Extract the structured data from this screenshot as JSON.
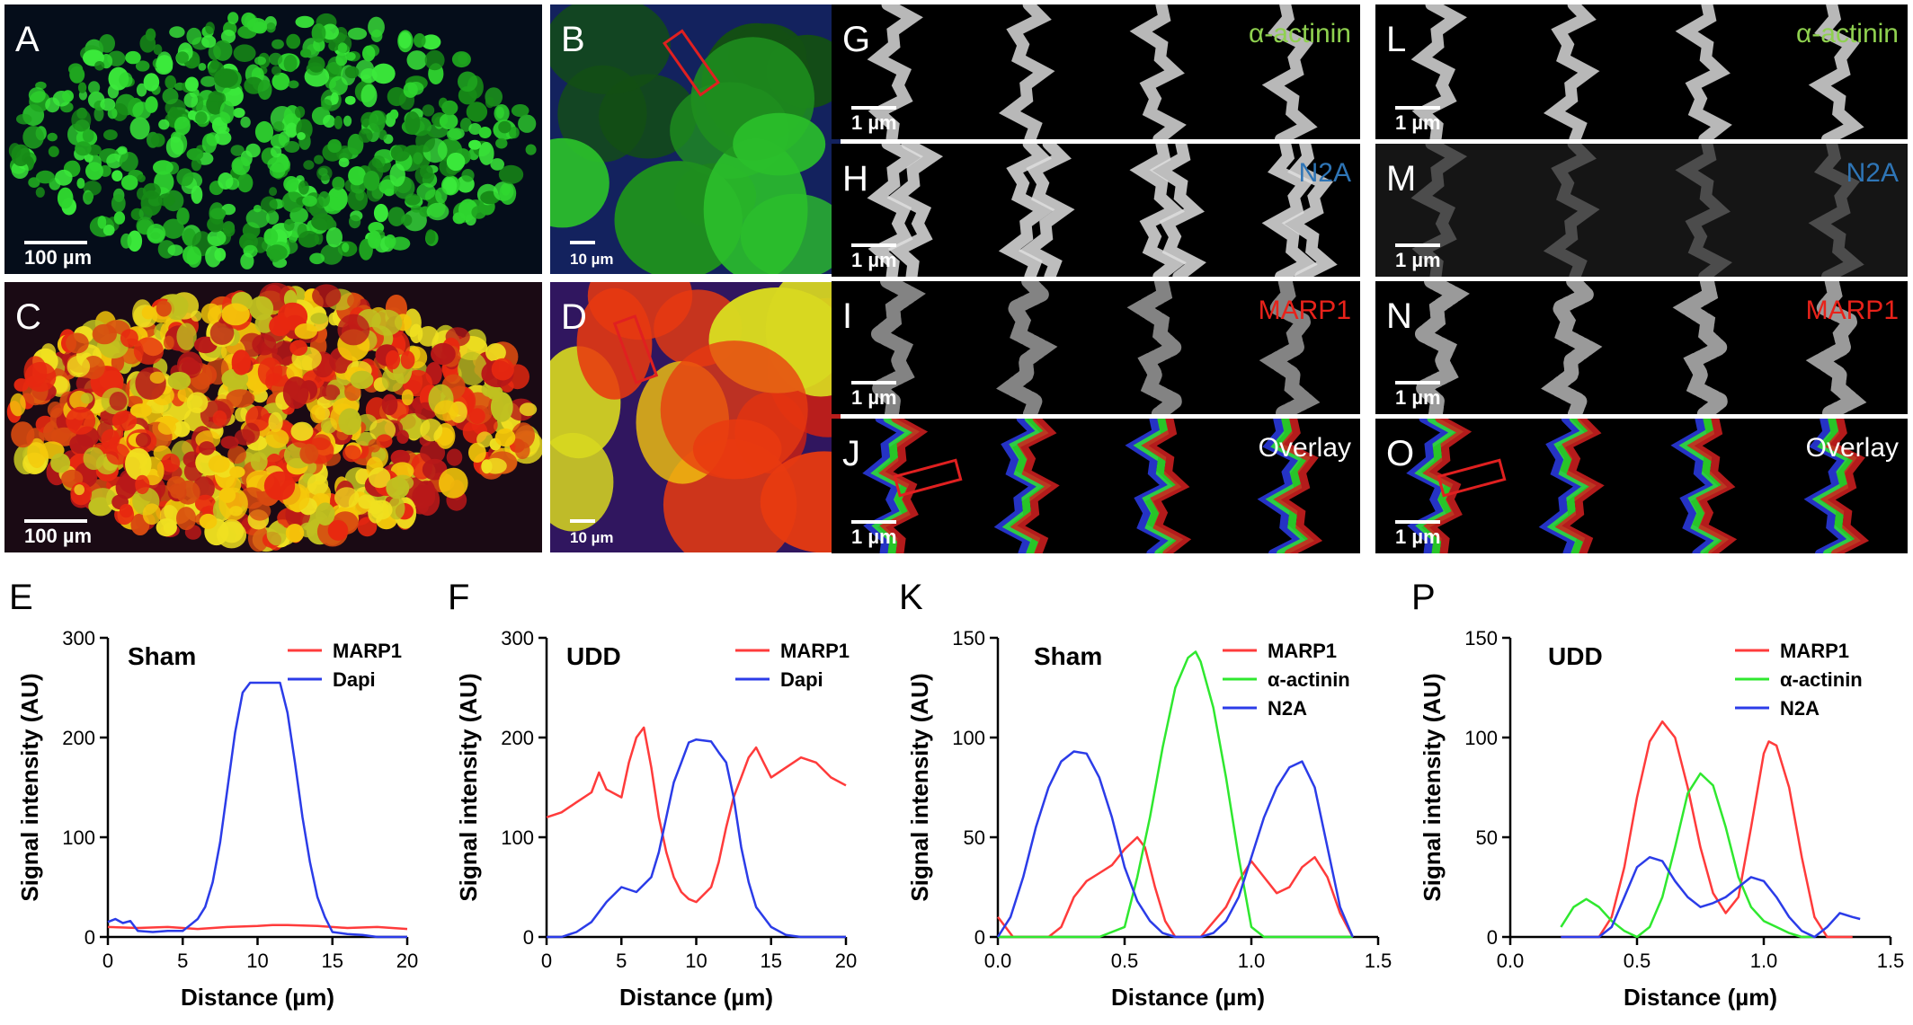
{
  "micrographs": [
    {
      "letter": "A",
      "scale": "100 µm",
      "style": "green-fibers",
      "label": ""
    },
    {
      "letter": "B",
      "scale": "10 µm",
      "style": "green-closeup",
      "label": ""
    },
    {
      "letter": "C",
      "scale": "100 µm",
      "style": "yellow-red-fibers",
      "label": ""
    },
    {
      "letter": "D",
      "scale": "10 µm",
      "style": "yellow-red-closeup",
      "label": ""
    },
    {
      "letter": "G",
      "scale": "1 µm",
      "style": "gray-striation",
      "label": "α-actinin",
      "label_color": "#8fd14f"
    },
    {
      "letter": "H",
      "scale": "1 µm",
      "style": "gray-double",
      "label": "N2A",
      "label_color": "#2e75b6"
    },
    {
      "letter": "I",
      "scale": "1 µm",
      "style": "gray-dotted",
      "label": "MARP1",
      "label_color": "#e8221a"
    },
    {
      "letter": "J",
      "scale": "1 µm",
      "style": "overlay",
      "label": "Overlay",
      "label_color": "#ffffff"
    },
    {
      "letter": "L",
      "scale": "1 µm",
      "style": "gray-striation",
      "label": "α-actinin",
      "label_color": "#8fd14f"
    },
    {
      "letter": "M",
      "scale": "1 µm",
      "style": "gray-faint",
      "label": "N2A",
      "label_color": "#2e75b6"
    },
    {
      "letter": "N",
      "scale": "1 µm",
      "style": "gray-dotted-wide",
      "label": "MARP1",
      "label_color": "#e8221a"
    },
    {
      "letter": "O",
      "scale": "1 µm",
      "style": "overlay",
      "label": "Overlay",
      "label_color": "#ffffff"
    }
  ],
  "colors": {
    "marp1": "#ff3b3b",
    "dapi": "#2b3ce8",
    "actinin": "#2fe82f",
    "n2a": "#2b3ce8"
  },
  "chart_data": [
    {
      "letter": "E",
      "type": "line",
      "annotation": "Sham",
      "xlabel": "Distance (µm)",
      "ylabel": "Signal intensity (AU)",
      "xlim": [
        0,
        20
      ],
      "ylim": [
        0,
        300
      ],
      "xticks": [
        0,
        5,
        10,
        15,
        20
      ],
      "yticks": [
        0,
        100,
        200,
        300
      ],
      "series": [
        {
          "name": "MARP1",
          "color": "#ff3b3b",
          "x": [
            0,
            2,
            4,
            6,
            8,
            10,
            11,
            12,
            14,
            16,
            18,
            20
          ],
          "y": [
            10,
            9,
            10,
            8,
            10,
            11,
            12,
            12,
            11,
            9,
            10,
            8
          ]
        },
        {
          "name": "Dapi",
          "color": "#2b3ce8",
          "x": [
            0,
            0.5,
            1,
            1.5,
            2,
            3,
            4,
            5,
            5.5,
            6,
            6.5,
            7,
            7.5,
            8,
            8.5,
            9,
            9.5,
            10,
            11,
            11.5,
            12,
            12.5,
            13,
            13.5,
            14,
            14.5,
            15,
            16,
            17,
            18,
            20
          ],
          "y": [
            15,
            18,
            14,
            16,
            6,
            5,
            6,
            6,
            12,
            18,
            30,
            55,
            95,
            150,
            205,
            245,
            255,
            255,
            255,
            255,
            225,
            175,
            120,
            75,
            40,
            20,
            5,
            3,
            2,
            0,
            0
          ]
        }
      ]
    },
    {
      "letter": "F",
      "type": "line",
      "annotation": "UDD",
      "xlabel": "Distance (µm)",
      "ylabel": "Signal intensity (AU)",
      "xlim": [
        0,
        20
      ],
      "ylim": [
        0,
        300
      ],
      "xticks": [
        0,
        5,
        10,
        15,
        20
      ],
      "yticks": [
        0,
        100,
        200,
        300
      ],
      "series": [
        {
          "name": "MARP1",
          "color": "#ff3b3b",
          "x": [
            0,
            1,
            2,
            3,
            3.5,
            4,
            5,
            5.5,
            6,
            6.5,
            7,
            7.5,
            8,
            8.5,
            9,
            9.5,
            10,
            11,
            11.5,
            12,
            12.5,
            13,
            13.5,
            14,
            14.5,
            15,
            16,
            17,
            18,
            19,
            20
          ],
          "y": [
            120,
            125,
            135,
            145,
            165,
            148,
            140,
            175,
            200,
            210,
            170,
            120,
            85,
            60,
            45,
            38,
            35,
            50,
            75,
            110,
            140,
            160,
            180,
            190,
            175,
            160,
            170,
            180,
            175,
            160,
            152
          ]
        },
        {
          "name": "Dapi",
          "color": "#2b3ce8",
          "x": [
            0,
            1,
            2,
            3,
            4,
            5,
            6,
            7,
            7.5,
            8,
            8.5,
            9,
            9.5,
            10,
            11,
            11.5,
            12,
            12.5,
            13,
            13.5,
            14,
            15,
            16,
            17,
            18,
            20
          ],
          "y": [
            0,
            0,
            5,
            15,
            35,
            50,
            45,
            60,
            85,
            120,
            155,
            175,
            195,
            198,
            196,
            185,
            175,
            140,
            90,
            55,
            30,
            10,
            2,
            0,
            0,
            0
          ]
        }
      ]
    },
    {
      "letter": "K",
      "type": "line",
      "annotation": "Sham",
      "xlabel": "Distance (µm)",
      "ylabel": "Signal intensity (AU)",
      "xlim": [
        0,
        1.5
      ],
      "ylim": [
        0,
        150
      ],
      "xticks": [
        0.0,
        0.5,
        1.0,
        1.5
      ],
      "yticks": [
        0,
        50,
        100,
        150
      ],
      "series": [
        {
          "name": "MARP1",
          "color": "#ff3b3b",
          "x": [
            0,
            0.03,
            0.06,
            0.1,
            0.2,
            0.25,
            0.3,
            0.35,
            0.4,
            0.45,
            0.5,
            0.55,
            0.58,
            0.62,
            0.66,
            0.7,
            0.8,
            0.9,
            0.95,
            1.0,
            1.05,
            1.1,
            1.15,
            1.2,
            1.25,
            1.3,
            1.35,
            1.4
          ],
          "y": [
            10,
            5,
            0,
            0,
            0,
            5,
            20,
            28,
            32,
            36,
            44,
            50,
            45,
            25,
            8,
            0,
            0,
            15,
            28,
            38,
            30,
            22,
            25,
            35,
            40,
            30,
            12,
            0
          ]
        },
        {
          "name": "α-actinin",
          "color": "#2fe82f",
          "x": [
            0,
            0.4,
            0.5,
            0.55,
            0.6,
            0.65,
            0.7,
            0.75,
            0.78,
            0.8,
            0.85,
            0.9,
            0.95,
            1.0,
            1.05,
            1.1,
            1.4
          ],
          "y": [
            0,
            0,
            5,
            30,
            60,
            95,
            125,
            140,
            143,
            138,
            115,
            80,
            40,
            5,
            0,
            0,
            0
          ]
        },
        {
          "name": "N2A",
          "color": "#2b3ce8",
          "x": [
            0,
            0.05,
            0.1,
            0.15,
            0.2,
            0.25,
            0.3,
            0.35,
            0.4,
            0.45,
            0.5,
            0.55,
            0.6,
            0.65,
            0.7,
            0.75,
            0.8,
            0.85,
            0.9,
            0.95,
            1.0,
            1.05,
            1.1,
            1.15,
            1.2,
            1.25,
            1.3,
            1.35,
            1.4
          ],
          "y": [
            0,
            10,
            30,
            55,
            75,
            88,
            93,
            92,
            80,
            60,
            35,
            18,
            8,
            2,
            0,
            0,
            0,
            2,
            8,
            20,
            40,
            60,
            75,
            85,
            88,
            75,
            45,
            15,
            0
          ]
        }
      ]
    },
    {
      "letter": "P",
      "type": "line",
      "annotation": "UDD",
      "xlabel": "Distance (µm)",
      "ylabel": "Signal intensity (AU)",
      "xlim": [
        0,
        1.5
      ],
      "ylim": [
        0,
        150
      ],
      "xticks": [
        0.0,
        0.5,
        1.0,
        1.5
      ],
      "yticks": [
        0,
        50,
        100,
        150
      ],
      "series": [
        {
          "name": "MARP1",
          "color": "#ff3b3b",
          "x": [
            0.2,
            0.35,
            0.4,
            0.45,
            0.5,
            0.55,
            0.6,
            0.65,
            0.7,
            0.75,
            0.8,
            0.85,
            0.9,
            0.95,
            1.0,
            1.02,
            1.05,
            1.1,
            1.15,
            1.2,
            1.25,
            1.35
          ],
          "y": [
            0,
            0,
            10,
            35,
            70,
            98,
            108,
            100,
            75,
            45,
            22,
            12,
            20,
            55,
            92,
            98,
            96,
            75,
            40,
            10,
            0,
            0
          ]
        },
        {
          "name": "α-actinin",
          "color": "#2fe82f",
          "x": [
            0.2,
            0.25,
            0.3,
            0.35,
            0.4,
            0.45,
            0.5,
            0.55,
            0.6,
            0.65,
            0.7,
            0.75,
            0.8,
            0.85,
            0.9,
            0.95,
            1.0,
            1.05,
            1.1,
            1.15,
            1.2
          ],
          "y": [
            5,
            15,
            19,
            15,
            8,
            3,
            0,
            5,
            20,
            45,
            72,
            82,
            76,
            55,
            30,
            15,
            8,
            5,
            2,
            0,
            0
          ]
        },
        {
          "name": "N2A",
          "color": "#2b3ce8",
          "x": [
            0.2,
            0.35,
            0.4,
            0.45,
            0.5,
            0.55,
            0.6,
            0.65,
            0.7,
            0.75,
            0.8,
            0.85,
            0.9,
            0.95,
            1.0,
            1.05,
            1.1,
            1.15,
            1.2,
            1.25,
            1.3,
            1.35,
            1.38
          ],
          "y": [
            0,
            0,
            5,
            20,
            35,
            40,
            38,
            28,
            20,
            15,
            17,
            20,
            25,
            30,
            28,
            20,
            10,
            3,
            0,
            5,
            12,
            10,
            9
          ]
        }
      ]
    }
  ]
}
